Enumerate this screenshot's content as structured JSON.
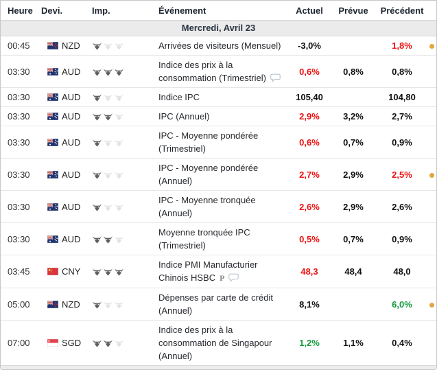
{
  "table": {
    "columns": [
      {
        "key": "time",
        "label": "Heure"
      },
      {
        "key": "currency",
        "label": "Devi."
      },
      {
        "key": "importance",
        "label": "Imp."
      },
      {
        "key": "event",
        "label": "Événement"
      },
      {
        "key": "actual",
        "label": "Actuel"
      },
      {
        "key": "forecast",
        "label": "Prévue"
      },
      {
        "key": "previous",
        "label": "Précédent"
      }
    ],
    "date_header": "Mercredi, Avril 23",
    "rows": [
      {
        "time": "00:45",
        "currency": "NZD",
        "importance": 1,
        "event": "Arrivées de visiteurs (Mensuel)",
        "icons": [],
        "actual": "-3,0%",
        "actual_color": "black",
        "forecast": "",
        "forecast_color": "black",
        "previous": "1,8%",
        "previous_color": "red",
        "dot": true
      },
      {
        "time": "03:30",
        "currency": "AUD",
        "importance": 3,
        "event": "Indice des prix à la consommation (Trimestriel)",
        "icons": [
          "bubble"
        ],
        "actual": "0,6%",
        "actual_color": "red",
        "forecast": "0,8%",
        "forecast_color": "black",
        "previous": "0,8%",
        "previous_color": "black",
        "dot": false
      },
      {
        "time": "03:30",
        "currency": "AUD",
        "importance": 1,
        "event": "Indice IPC",
        "icons": [],
        "actual": "105,40",
        "actual_color": "black",
        "forecast": "",
        "forecast_color": "black",
        "previous": "104,80",
        "previous_color": "black",
        "dot": false
      },
      {
        "time": "03:30",
        "currency": "AUD",
        "importance": 2,
        "event": "IPC (Annuel)",
        "icons": [],
        "actual": "2,9%",
        "actual_color": "red",
        "forecast": "3,2%",
        "forecast_color": "black",
        "previous": "2,7%",
        "previous_color": "black",
        "dot": false
      },
      {
        "time": "03:30",
        "currency": "AUD",
        "importance": 1,
        "event": "IPC - Moyenne pondérée (Trimestriel)",
        "icons": [],
        "actual": "0,6%",
        "actual_color": "red",
        "forecast": "0,7%",
        "forecast_color": "black",
        "previous": "0,9%",
        "previous_color": "black",
        "dot": false
      },
      {
        "time": "03:30",
        "currency": "AUD",
        "importance": 1,
        "event": "IPC - Moyenne pondérée (Annuel)",
        "icons": [],
        "actual": "2,7%",
        "actual_color": "red",
        "forecast": "2,9%",
        "forecast_color": "black",
        "previous": "2,5%",
        "previous_color": "red",
        "dot": true
      },
      {
        "time": "03:30",
        "currency": "AUD",
        "importance": 1,
        "event": "IPC - Moyenne tronquée (Annuel)",
        "icons": [],
        "actual": "2,6%",
        "actual_color": "red",
        "forecast": "2,9%",
        "forecast_color": "black",
        "previous": "2,6%",
        "previous_color": "black",
        "dot": false
      },
      {
        "time": "03:30",
        "currency": "AUD",
        "importance": 2,
        "event": "Moyenne tronquée IPC (Trimestriel)",
        "icons": [],
        "actual": "0,5%",
        "actual_color": "red",
        "forecast": "0,7%",
        "forecast_color": "black",
        "previous": "0,9%",
        "previous_color": "black",
        "dot": false
      },
      {
        "time": "03:45",
        "currency": "CNY",
        "importance": 3,
        "event": "Indice PMI Manufacturier Chinois HSBC",
        "icons": [
          "preliminary",
          "bubble"
        ],
        "actual": "48,3",
        "actual_color": "red",
        "forecast": "48,4",
        "forecast_color": "black",
        "previous": "48,0",
        "previous_color": "black",
        "dot": false
      },
      {
        "time": "05:00",
        "currency": "NZD",
        "importance": 1,
        "event": "Dépenses par carte de crédit (Annuel)",
        "icons": [],
        "actual": "8,1%",
        "actual_color": "black",
        "forecast": "",
        "forecast_color": "black",
        "previous": "6,0%",
        "previous_color": "green",
        "dot": true
      },
      {
        "time": "07:00",
        "currency": "SGD",
        "importance": 2,
        "event": "Indice des prix à la consommation de Singapour (Annuel)",
        "icons": [],
        "actual": "1,2%",
        "actual_color": "green",
        "forecast": "1,1%",
        "forecast_color": "black",
        "previous": "0,4%",
        "previous_color": "black",
        "dot": false
      }
    ]
  },
  "icon_names": {
    "preliminary": "preliminary-report-icon",
    "bubble": "comments-bubble-icon"
  },
  "colors": {
    "red": "#ee1111",
    "green": "#169b3e",
    "black": "#111111",
    "alert_dot": "#e2a63c",
    "bull_active": "#5e5e5e",
    "bull_inactive": "#e2e2e2"
  }
}
